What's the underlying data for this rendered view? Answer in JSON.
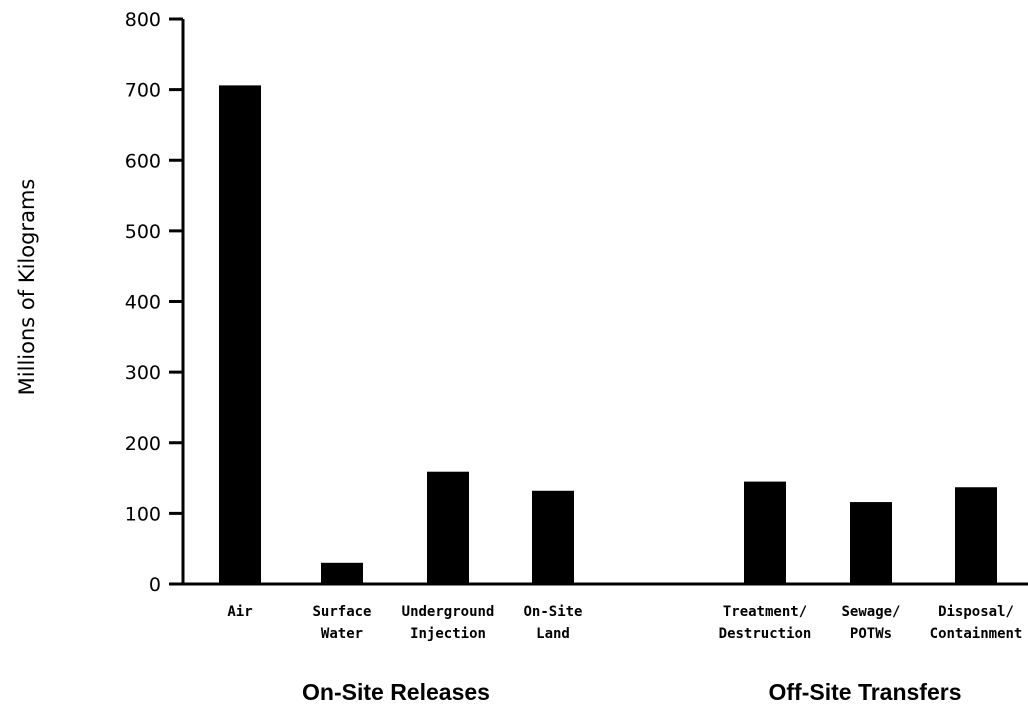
{
  "chart_data": {
    "type": "bar",
    "categories": [
      [
        "Air"
      ],
      [
        "Surface",
        "Water"
      ],
      [
        "Underground",
        "Injection"
      ],
      [
        "On-Site",
        "Land"
      ],
      [
        "Treatment/",
        "Destruction"
      ],
      [
        "Sewage/",
        "POTWs"
      ],
      [
        "Disposal/",
        "Containment"
      ]
    ],
    "values": [
      706,
      30,
      159,
      132,
      145,
      116,
      137
    ],
    "groups": [
      {
        "label": "On-Site Releases",
        "members": [
          0,
          1,
          2,
          3
        ]
      },
      {
        "label": "Off-Site Transfers",
        "members": [
          4,
          5,
          6
        ]
      }
    ],
    "title": "",
    "xlabel": "",
    "ylabel": "Millions of Kilograms",
    "ylim": [
      0,
      800
    ],
    "yticks": [
      "0",
      "100",
      "200",
      "300",
      "400",
      "500",
      "600",
      "700",
      "800"
    ],
    "grid": false,
    "bar_color": "#000000"
  }
}
